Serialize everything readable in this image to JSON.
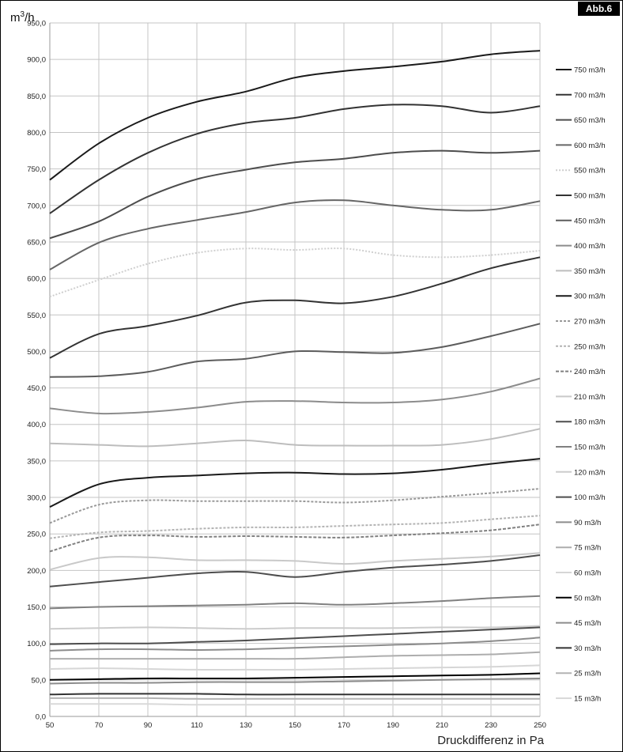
{
  "figure_tag": "Abb.6",
  "chart_data": {
    "type": "line",
    "unit_base": "m",
    "unit_exp": "3",
    "unit_rest": "/h",
    "xlabel": "Druckdifferenz in Pa",
    "xlim": [
      50,
      250
    ],
    "ylim": [
      0,
      950
    ],
    "x_ticks": [
      "50",
      "70",
      "90",
      "110",
      "130",
      "150",
      "170",
      "190",
      "210",
      "230",
      "250"
    ],
    "y_ticks": [
      "0,0",
      "50,0",
      "100,0",
      "150,0",
      "200,0",
      "250,0",
      "300,0",
      "350,0",
      "400,0",
      "450,0",
      "500,0",
      "550,0",
      "600,0",
      "650,0",
      "700,0",
      "750,0",
      "800,0",
      "850,0",
      "900,0",
      "950,0"
    ],
    "grid": true,
    "legend_position": "right",
    "x": [
      50,
      70,
      90,
      110,
      130,
      150,
      170,
      190,
      210,
      230,
      250
    ],
    "series": [
      {
        "name": "750 m3/h",
        "color": "#1a1a1a",
        "dash": "",
        "values": [
          735,
          785,
          820,
          842,
          856,
          875,
          884,
          890,
          897,
          907,
          912
        ]
      },
      {
        "name": "700 m3/h",
        "color": "#333333",
        "dash": "",
        "values": [
          689,
          735,
          772,
          798,
          813,
          820,
          832,
          838,
          836,
          827,
          836
        ]
      },
      {
        "name": "650 m3/h",
        "color": "#4d4d4d",
        "dash": "",
        "values": [
          655,
          678,
          712,
          736,
          749,
          759,
          764,
          772,
          775,
          772,
          775
        ]
      },
      {
        "name": "600 m3/h",
        "color": "#666666",
        "dash": "",
        "values": [
          612,
          649,
          668,
          680,
          691,
          704,
          707,
          700,
          694,
          694,
          706
        ]
      },
      {
        "name": "550 m3/h",
        "color": "#cfcfcf",
        "dash": "2,2",
        "values": [
          575,
          598,
          620,
          635,
          641,
          639,
          641,
          632,
          629,
          632,
          638
        ]
      },
      {
        "name": "500 m3/h",
        "color": "#333333",
        "dash": "",
        "values": [
          491,
          524,
          535,
          549,
          567,
          570,
          566,
          575,
          593,
          614,
          629
        ]
      },
      {
        "name": "450 m3/h",
        "color": "#5c5c5c",
        "dash": "",
        "values": [
          465,
          466,
          472,
          486,
          490,
          500,
          499,
          498,
          506,
          521,
          538
        ]
      },
      {
        "name": "400 m3/h",
        "color": "#8c8c8c",
        "dash": "",
        "values": [
          422,
          415,
          417,
          423,
          431,
          432,
          430,
          430,
          434,
          445,
          463
        ]
      },
      {
        "name": "350 m3/h",
        "color": "#bdbdbd",
        "dash": "",
        "values": [
          374,
          372,
          370,
          374,
          378,
          372,
          371,
          371,
          372,
          380,
          394
        ]
      },
      {
        "name": "300 m3/h",
        "color": "#1a1a1a",
        "dash": "",
        "values": [
          287,
          318,
          327,
          330,
          333,
          334,
          332,
          333,
          338,
          346,
          353
        ]
      },
      {
        "name": "270 m3/h",
        "color": "#999999",
        "dash": "3,2",
        "values": [
          265,
          290,
          296,
          295,
          295,
          295,
          293,
          296,
          301,
          306,
          312
        ]
      },
      {
        "name": "250 m3/h",
        "color": "#b3b3b3",
        "dash": "3,2",
        "values": [
          244,
          252,
          254,
          257,
          259,
          259,
          261,
          263,
          265,
          270,
          275
        ]
      },
      {
        "name": "240 m3/h",
        "color": "#808080",
        "dash": "4,2",
        "values": [
          226,
          245,
          248,
          246,
          247,
          246,
          245,
          248,
          251,
          255,
          263
        ]
      },
      {
        "name": "210 m3/h",
        "color": "#c9c9c9",
        "dash": "",
        "values": [
          201,
          217,
          218,
          214,
          214,
          213,
          209,
          213,
          216,
          219,
          224
        ]
      },
      {
        "name": "180 m3/h",
        "color": "#4d4d4d",
        "dash": "",
        "values": [
          178,
          184,
          190,
          196,
          198,
          191,
          198,
          204,
          208,
          213,
          221
        ]
      },
      {
        "name": "150 m3/h",
        "color": "#808080",
        "dash": "",
        "values": [
          148,
          150,
          151,
          152,
          153,
          155,
          153,
          155,
          158,
          162,
          165
        ]
      },
      {
        "name": "120 m3/h",
        "color": "#cccccc",
        "dash": "",
        "values": [
          120,
          121,
          122,
          121,
          120,
          121,
          121,
          121,
          122,
          122,
          124
        ]
      },
      {
        "name": "100 m3/h",
        "color": "#4d4d4d",
        "dash": "",
        "values": [
          99,
          100,
          100,
          102,
          104,
          107,
          110,
          113,
          116,
          119,
          122
        ]
      },
      {
        "name": "90 m3/h",
        "color": "#8c8c8c",
        "dash": "",
        "values": [
          90,
          92,
          92,
          91,
          92,
          94,
          96,
          98,
          100,
          103,
          108
        ]
      },
      {
        "name": "75 m3/h",
        "color": "#adadad",
        "dash": "",
        "values": [
          79,
          79,
          79,
          79,
          79,
          79,
          81,
          83,
          84,
          85,
          88
        ]
      },
      {
        "name": "60 m3/h",
        "color": "#d6d6d6",
        "dash": "",
        "values": [
          65,
          66,
          65,
          64,
          64,
          64,
          65,
          66,
          67,
          68,
          70
        ]
      },
      {
        "name": "50 m3/h",
        "color": "#000000",
        "dash": "",
        "values": [
          50,
          51,
          52,
          52,
          52,
          53,
          54,
          55,
          56,
          57,
          59
        ]
      },
      {
        "name": "45 m3/h",
        "color": "#8c8c8c",
        "dash": "",
        "values": [
          45,
          46,
          46,
          47,
          47,
          47,
          48,
          49,
          50,
          51,
          52
        ]
      },
      {
        "name": "30 m3/h",
        "color": "#333333",
        "dash": "",
        "values": [
          30,
          31,
          31,
          31,
          30,
          30,
          30,
          30,
          30,
          30,
          30
        ]
      },
      {
        "name": "25 m3/h",
        "color": "#b3b3b3",
        "dash": "",
        "values": [
          25,
          25,
          25,
          24,
          24,
          24,
          24,
          24,
          24,
          24,
          24
        ]
      },
      {
        "name": "15 m3/h",
        "color": "#d9d9d9",
        "dash": "",
        "values": [
          17,
          17,
          17,
          16,
          16,
          16,
          16,
          16,
          16,
          16,
          16
        ]
      }
    ]
  }
}
